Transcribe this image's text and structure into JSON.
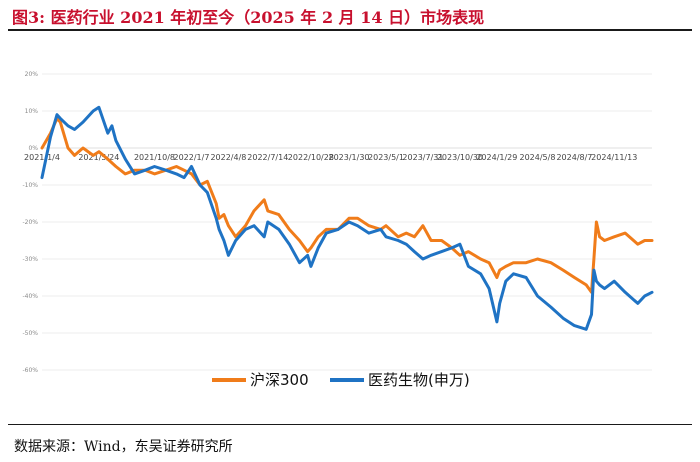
{
  "header": {
    "title": "图3:  医药行业 2021 年初至今（2025 年 2 月 14 日）市场表现"
  },
  "footer": {
    "source": "数据来源：Wind，东吴证券研究所"
  },
  "colors": {
    "title": "#c8102e",
    "hs300": "#f07c1a",
    "pharma": "#1f73c4",
    "grid": "#d9d9d9"
  },
  "chart_data": {
    "type": "line",
    "title": "",
    "xlabel": "",
    "ylabel": "",
    "ylim": [
      -0.6,
      0.2
    ],
    "y_ticks": [
      0.2,
      0.1,
      0.0,
      -0.1,
      -0.2,
      -0.3,
      -0.4,
      -0.5,
      -0.6
    ],
    "y_tick_labels": [
      "20%",
      "10%",
      "0%",
      "-10%",
      "-20%",
      "-30%",
      "-40%",
      "-50%",
      "-60%"
    ],
    "x_range": [
      "2021-01-04",
      "2025-02-14"
    ],
    "x_tick_dates": [
      "2021-01-04",
      "2021-05-24",
      "2021-10-08",
      "2022-01-07",
      "2022-04-08",
      "2022-07-14",
      "2022-10-28",
      "2023-01-30",
      "2023-05-01",
      "2023-07-31",
      "2023-10-30",
      "2024-01-29",
      "2024-05-08",
      "2024-08-07",
      "2024-11-13"
    ],
    "x_tick_labels": [
      "2021/1/4",
      "2021/5/24",
      "2021/10/8",
      "2022/1/7",
      "2022/4/8",
      "2022/7/14",
      "2022/10/28",
      "2023/1/30",
      "2023/5/1",
      "2023/7/31",
      "2023/10/30",
      "2024/1/29",
      "2024/5/8",
      "2024/8/7",
      "2024/11/13"
    ],
    "legend_position": "bottom-center",
    "grid": true,
    "series": [
      {
        "name": "沪深300",
        "color": "#f07c1a",
        "x": [
          "2021-01-04",
          "2021-01-25",
          "2021-02-10",
          "2021-02-18",
          "2021-03-09",
          "2021-03-25",
          "2021-04-15",
          "2021-05-10",
          "2021-05-24",
          "2021-06-15",
          "2021-07-05",
          "2021-07-28",
          "2021-08-20",
          "2021-09-15",
          "2021-10-08",
          "2021-11-05",
          "2021-12-01",
          "2021-12-20",
          "2022-01-07",
          "2022-01-28",
          "2022-02-15",
          "2022-03-09",
          "2022-03-16",
          "2022-03-28",
          "2022-04-08",
          "2022-04-26",
          "2022-05-20",
          "2022-06-10",
          "2022-07-05",
          "2022-07-14",
          "2022-08-10",
          "2022-09-05",
          "2022-09-30",
          "2022-10-20",
          "2022-10-28",
          "2022-11-15",
          "2022-12-05",
          "2023-01-03",
          "2023-01-30",
          "2023-02-20",
          "2023-03-20",
          "2023-04-18",
          "2023-05-01",
          "2023-05-31",
          "2023-06-20",
          "2023-07-10",
          "2023-07-31",
          "2023-08-20",
          "2023-09-15",
          "2023-10-10",
          "2023-10-30",
          "2023-11-20",
          "2023-12-20",
          "2024-01-10",
          "2024-01-29",
          "2024-02-05",
          "2024-02-20",
          "2024-03-10",
          "2024-04-10",
          "2024-05-08",
          "2024-06-10",
          "2024-07-10",
          "2024-08-07",
          "2024-09-05",
          "2024-09-18",
          "2024-09-24",
          "2024-09-30",
          "2024-10-08",
          "2024-10-20",
          "2024-11-13",
          "2024-12-10",
          "2025-01-10",
          "2025-01-27",
          "2025-02-14"
        ],
        "y": [
          0.0,
          0.04,
          0.08,
          0.07,
          0.0,
          -0.02,
          0.0,
          -0.02,
          -0.01,
          -0.03,
          -0.05,
          -0.07,
          -0.06,
          -0.06,
          -0.07,
          -0.06,
          -0.05,
          -0.06,
          -0.07,
          -0.1,
          -0.09,
          -0.15,
          -0.19,
          -0.18,
          -0.21,
          -0.24,
          -0.21,
          -0.17,
          -0.14,
          -0.17,
          -0.18,
          -0.22,
          -0.25,
          -0.28,
          -0.27,
          -0.24,
          -0.22,
          -0.22,
          -0.19,
          -0.19,
          -0.21,
          -0.22,
          -0.21,
          -0.24,
          -0.23,
          -0.24,
          -0.21,
          -0.25,
          -0.25,
          -0.27,
          -0.29,
          -0.28,
          -0.3,
          -0.31,
          -0.35,
          -0.33,
          -0.32,
          -0.31,
          -0.31,
          -0.3,
          -0.31,
          -0.33,
          -0.35,
          -0.37,
          -0.39,
          -0.3,
          -0.2,
          -0.24,
          -0.25,
          -0.24,
          -0.23,
          -0.26,
          -0.25,
          -0.25
        ]
      },
      {
        "name": "医药生物(申万)",
        "color": "#1f73c4",
        "x": [
          "2021-01-04",
          "2021-01-25",
          "2021-02-10",
          "2021-02-18",
          "2021-03-09",
          "2021-03-25",
          "2021-04-15",
          "2021-05-10",
          "2021-05-24",
          "2021-06-15",
          "2021-06-25",
          "2021-07-05",
          "2021-07-28",
          "2021-08-20",
          "2021-09-15",
          "2021-10-08",
          "2021-11-05",
          "2021-12-01",
          "2021-12-20",
          "2022-01-07",
          "2022-01-28",
          "2022-02-15",
          "2022-03-09",
          "2022-03-16",
          "2022-03-28",
          "2022-04-08",
          "2022-04-26",
          "2022-05-20",
          "2022-06-10",
          "2022-07-05",
          "2022-07-14",
          "2022-08-10",
          "2022-09-05",
          "2022-09-30",
          "2022-10-20",
          "2022-10-28",
          "2022-11-15",
          "2022-12-05",
          "2023-01-03",
          "2023-01-30",
          "2023-02-20",
          "2023-03-20",
          "2023-04-18",
          "2023-05-01",
          "2023-05-31",
          "2023-06-20",
          "2023-07-10",
          "2023-07-31",
          "2023-08-20",
          "2023-09-15",
          "2023-10-10",
          "2023-10-30",
          "2023-11-20",
          "2023-12-20",
          "2024-01-10",
          "2024-01-29",
          "2024-02-05",
          "2024-02-20",
          "2024-03-10",
          "2024-04-10",
          "2024-05-08",
          "2024-06-10",
          "2024-07-10",
          "2024-08-07",
          "2024-09-05",
          "2024-09-18",
          "2024-09-24",
          "2024-09-30",
          "2024-10-08",
          "2024-10-20",
          "2024-11-13",
          "2024-12-10",
          "2025-01-10",
          "2025-01-27",
          "2025-02-14"
        ],
        "y": [
          -0.08,
          0.03,
          0.09,
          0.08,
          0.06,
          0.05,
          0.07,
          0.1,
          0.11,
          0.04,
          0.06,
          0.02,
          -0.03,
          -0.07,
          -0.06,
          -0.05,
          -0.06,
          -0.07,
          -0.08,
          -0.05,
          -0.1,
          -0.12,
          -0.19,
          -0.22,
          -0.25,
          -0.29,
          -0.25,
          -0.22,
          -0.21,
          -0.24,
          -0.2,
          -0.22,
          -0.26,
          -0.31,
          -0.29,
          -0.32,
          -0.27,
          -0.23,
          -0.22,
          -0.2,
          -0.21,
          -0.23,
          -0.22,
          -0.24,
          -0.25,
          -0.26,
          -0.28,
          -0.3,
          -0.29,
          -0.28,
          -0.27,
          -0.26,
          -0.32,
          -0.34,
          -0.38,
          -0.47,
          -0.42,
          -0.36,
          -0.34,
          -0.35,
          -0.4,
          -0.43,
          -0.46,
          -0.48,
          -0.49,
          -0.45,
          -0.33,
          -0.36,
          -0.37,
          -0.38,
          -0.36,
          -0.39,
          -0.42,
          -0.4,
          -0.39
        ]
      }
    ]
  }
}
